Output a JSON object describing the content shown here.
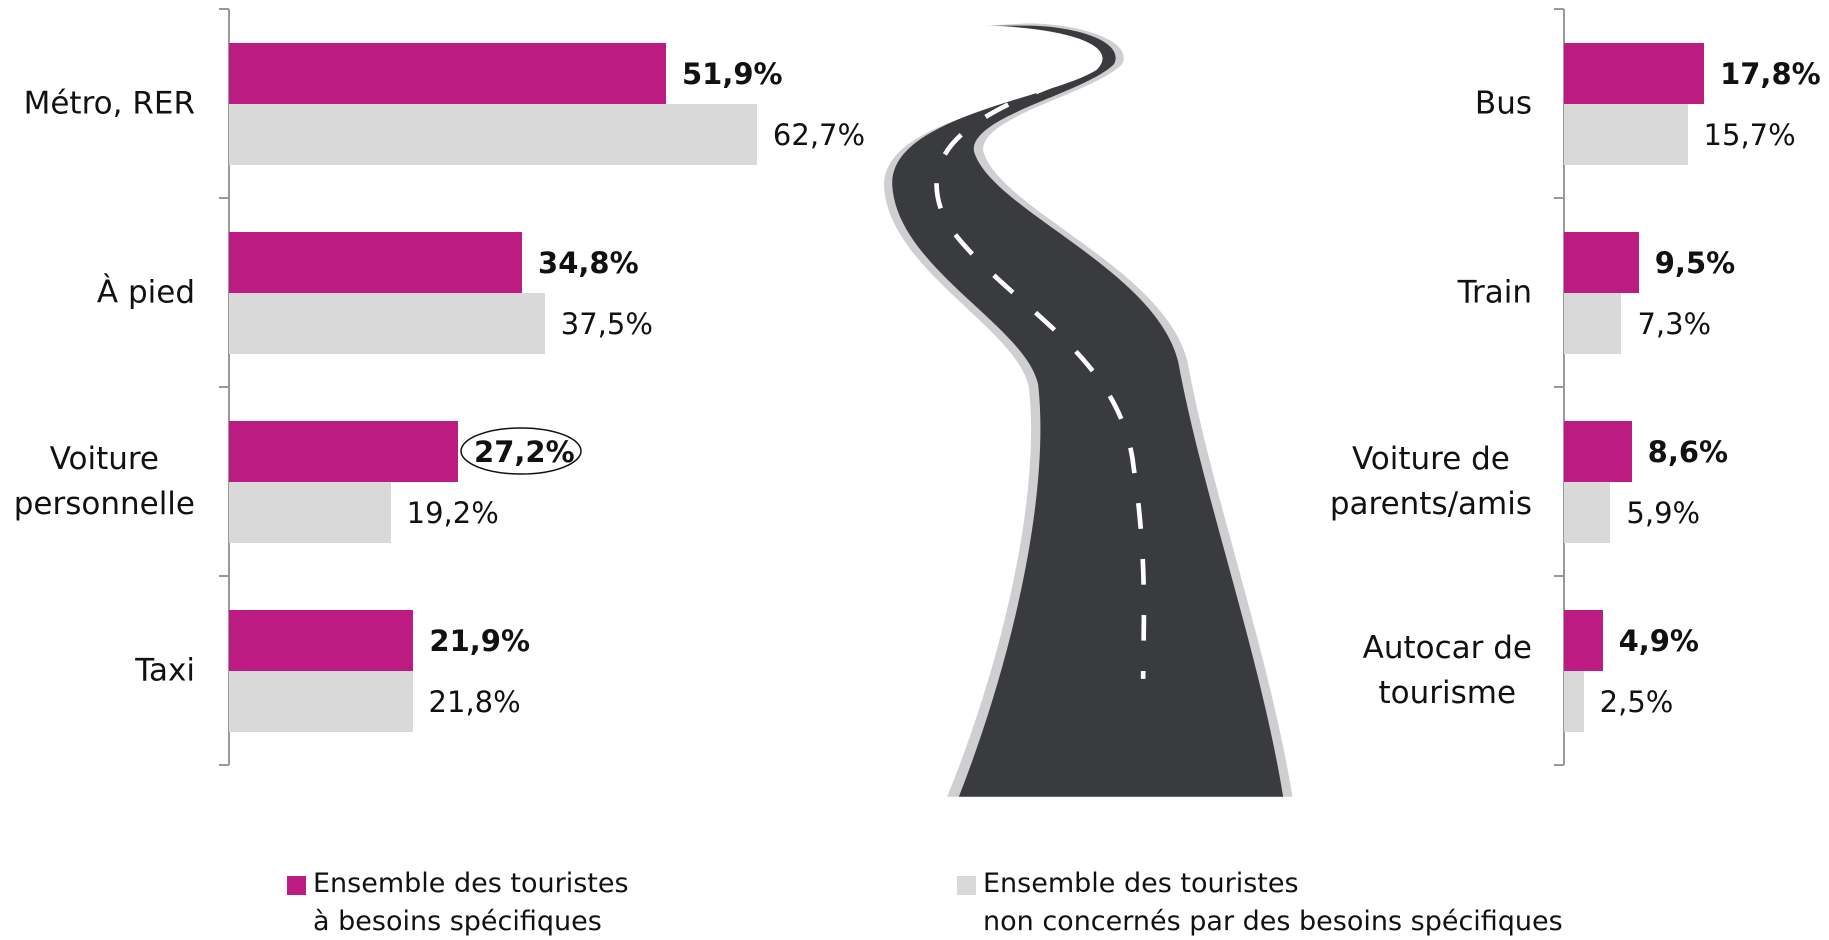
{
  "chart_data": [
    {
      "type": "bar",
      "orientation": "horizontal",
      "categories": [
        "Métro, RER",
        "À pied",
        "Voiture\npersonnelle",
        "Taxi"
      ],
      "series": [
        {
          "name": "Ensemble des touristes\nà besoins spécifiques",
          "color": "#bc1c81",
          "values": [
            51.9,
            34.8,
            27.2,
            21.9
          ],
          "value_labels": [
            "51,9%",
            "34,8%",
            "27,2%",
            "21,9%"
          ]
        },
        {
          "name": "Ensemble des touristes\nnon concernés par des besoins spécifiques",
          "color": "#d9d9d9",
          "values": [
            62.7,
            37.5,
            19.2,
            21.8
          ],
          "value_labels": [
            "62,7%",
            "37,5%",
            "19,2%",
            "21,8%"
          ]
        }
      ]
    },
    {
      "type": "bar",
      "orientation": "horizontal",
      "categories": [
        "Bus",
        "Train",
        "Voiture de\nparents/amis",
        "Autocar de\ntourisme"
      ],
      "series": [
        {
          "color": "#bc1c81",
          "values": [
            17.8,
            9.5,
            8.6,
            4.9
          ],
          "value_labels": [
            "17,8%",
            "9,5%",
            "8,6%",
            "4,9%"
          ]
        },
        {
          "color": "#d9d9d9",
          "values": [
            15.7,
            7.3,
            5.9,
            2.5
          ],
          "value_labels": [
            "15,7%",
            "7,3%",
            "5,9%",
            "2,5%"
          ]
        }
      ]
    }
  ]
}
